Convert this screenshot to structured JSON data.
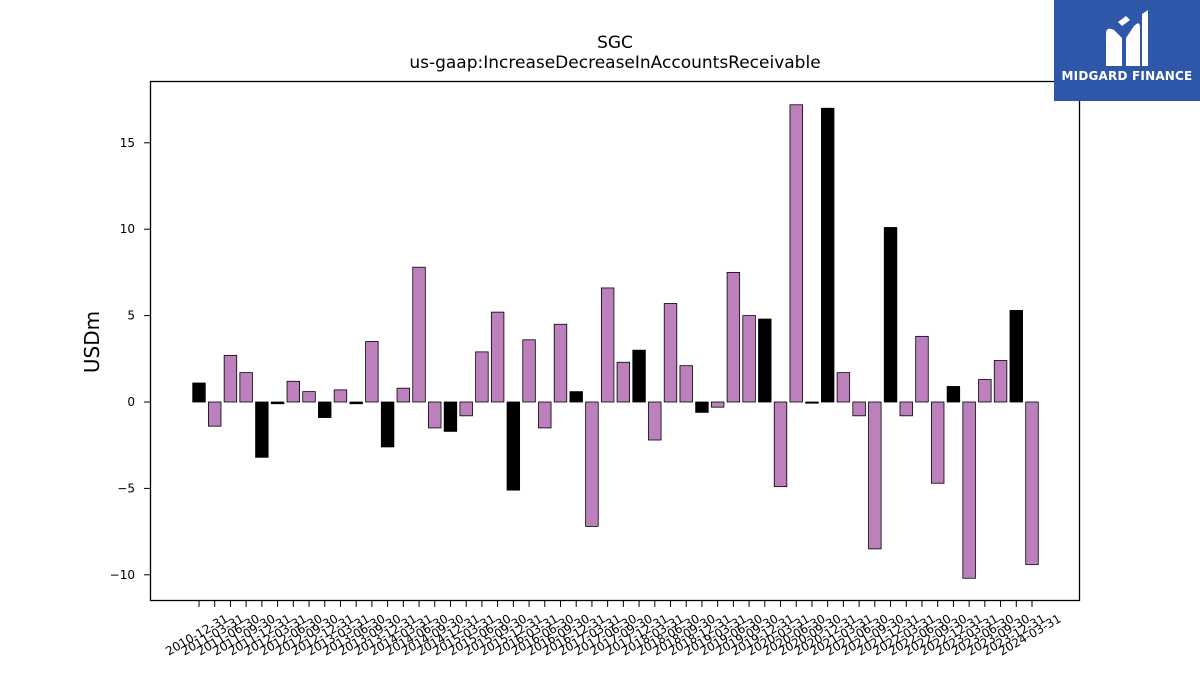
{
  "chart_data": {
    "type": "bar",
    "title": "SGC",
    "subtitle": "us-gaap:IncreaseDecreaseInAccountsReceivable",
    "xlabel": "",
    "ylabel": "USDm",
    "ylim": [
      -11.5,
      18.5
    ],
    "yticks": [
      -10,
      -5,
      0,
      5,
      10,
      15
    ],
    "ytick_labels": [
      "−10",
      "−5",
      "0",
      "5",
      "10",
      "15"
    ],
    "grid": false,
    "legend": "none",
    "colors": {
      "purple": "#bc80bd",
      "black": "#000000",
      "edge": "#000000"
    },
    "categories": [
      "2010-12-31",
      "2011-03-31",
      "2011-06-30",
      "2011-09-30",
      "2011-12-31",
      "2012-03-31",
      "2012-06-30",
      "2012-09-30",
      "2012-12-31",
      "2013-03-31",
      "2013-06-30",
      "2013-09-30",
      "2013-12-31",
      "2014-03-31",
      "2014-06-30",
      "2014-09-30",
      "2014-12-31",
      "2015-03-31",
      "2015-06-30",
      "2015-09-30",
      "2015-12-31",
      "2016-03-31",
      "2016-06-30",
      "2016-09-30",
      "2016-12-31",
      "2017-03-31",
      "2017-06-30",
      "2017-09-30",
      "2017-12-31",
      "2018-03-31",
      "2018-06-30",
      "2018-09-30",
      "2018-12-31",
      "2019-03-31",
      "2019-06-30",
      "2019-09-30",
      "2019-12-31",
      "2020-03-31",
      "2020-06-30",
      "2020-09-30",
      "2020-12-31",
      "2021-03-31",
      "2021-06-30",
      "2021-09-30",
      "2021-12-31",
      "2022-03-31",
      "2022-06-30",
      "2022-09-30",
      "2022-12-31",
      "2023-03-31",
      "2023-06-30",
      "2023-09-30",
      "2023-12-31",
      "2024-03-31"
    ],
    "values": [
      1.1,
      -1.4,
      2.7,
      1.7,
      -3.2,
      -0.1,
      1.2,
      0.6,
      -0.9,
      0.7,
      -0.1,
      3.5,
      -2.6,
      0.8,
      7.8,
      -1.5,
      -1.7,
      -0.8,
      2.9,
      5.2,
      -5.1,
      3.6,
      -1.5,
      4.5,
      0.6,
      -7.2,
      6.6,
      2.3,
      3.0,
      -2.2,
      5.7,
      2.1,
      -0.6,
      -0.3,
      7.5,
      5.0,
      4.8,
      -4.9,
      17.2,
      -0.05,
      17.0,
      1.7,
      -0.8,
      -8.5,
      10.1,
      -0.8,
      3.8,
      -4.7,
      0.9,
      -10.2,
      1.3,
      2.4,
      5.3,
      -9.4
    ],
    "bar_colors": [
      "black",
      "purple",
      "purple",
      "purple",
      "black",
      "black",
      "purple",
      "purple",
      "black",
      "purple",
      "black",
      "purple",
      "black",
      "purple",
      "purple",
      "purple",
      "black",
      "purple",
      "purple",
      "purple",
      "black",
      "purple",
      "purple",
      "purple",
      "black",
      "purple",
      "purple",
      "purple",
      "black",
      "purple",
      "purple",
      "purple",
      "black",
      "purple",
      "purple",
      "purple",
      "black",
      "purple",
      "purple",
      "black",
      "black",
      "purple",
      "purple",
      "purple",
      "black",
      "purple",
      "purple",
      "purple",
      "black",
      "purple",
      "purple",
      "purple",
      "black",
      "purple"
    ]
  },
  "logo": {
    "text": "MIDGARD FINANCE",
    "icon": "midgard-logo-icon"
  }
}
